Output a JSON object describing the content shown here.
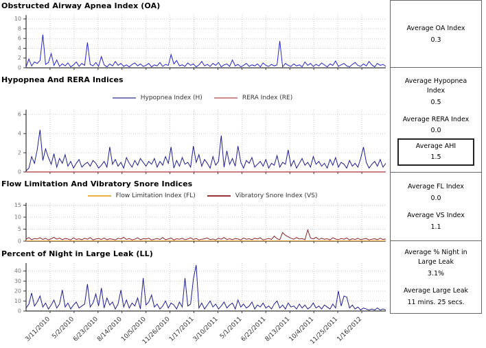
{
  "panel": {
    "oa": {
      "label": "Average OA Index",
      "value": "0.3"
    },
    "hyp": {
      "label": "Average Hypopnea Index",
      "value": "0.5"
    },
    "rera": {
      "label": "Average RERA Index",
      "value": "0.0"
    },
    "ahi": {
      "label": "Average AHI",
      "value": "1.5"
    },
    "fl": {
      "label": "Average FL Index",
      "value": "0.0"
    },
    "vs": {
      "label": "Average VS Index",
      "value": "1.1"
    },
    "ll_pct": {
      "label": "Average % Night in Large Leak",
      "value": "3.1%"
    },
    "ll_time": {
      "label": "Average Large Leak",
      "value": "11 mins. 25 secs."
    }
  },
  "chart_data": [
    {
      "type": "line",
      "title": "Obstructed Airway Apnea Index (OA)",
      "xlabel": "",
      "ylabel": "",
      "ylim": [
        0,
        10.8
      ],
      "yticks": [
        0,
        2,
        4,
        6,
        8,
        10
      ],
      "grid": true,
      "x_range": [
        "3/11/2010",
        "1/16/2012"
      ],
      "sampling_note": "daily values downsampled to ~130 points; notable peaks 6.8 (Mar 2010), 5.2 (Jun 2010), 2.7 (Oct 2010), 5.5 (Aug 2011)",
      "series": [
        {
          "name": "OA Index",
          "color": "#2222cc",
          "values": [
            0.2,
            1.8,
            0.4,
            1.2,
            0.9,
            1.5,
            6.8,
            0.7,
            1.1,
            2.9,
            0.5,
            1.6,
            0.3,
            0.8,
            0.4,
            1.0,
            0.2,
            0.6,
            1.2,
            0.3,
            0.9,
            0.5,
            5.2,
            0.7,
            0.4,
            1.1,
            0.3,
            2.3,
            0.6,
            0.2,
            0.8,
            0.4,
            1.3,
            0.5,
            0.9,
            0.3,
            0.6,
            0.2,
            0.7,
            1.0,
            0.4,
            0.8,
            0.3,
            0.5,
            0.9,
            0.2,
            0.6,
            0.4,
            1.1,
            0.3,
            0.7,
            0.5,
            2.7,
            0.8,
            1.5,
            0.4,
            0.6,
            0.3,
            1.0,
            0.5,
            0.8,
            0.2,
            0.6,
            1.3,
            0.4,
            0.7,
            0.3,
            0.9,
            0.5,
            1.1,
            0.2,
            0.6,
            0.8,
            0.3,
            1.6,
            0.4,
            0.7,
            0.2,
            0.5,
            0.9,
            0.3,
            0.6,
            0.4,
            0.8,
            0.2,
            1.0,
            0.5,
            0.3,
            0.7,
            0.4,
            0.6,
            5.5,
            0.2,
            0.9,
            0.5,
            0.3,
            0.8,
            0.4,
            0.6,
            0.2,
            1.2,
            0.5,
            0.9,
            0.3,
            0.7,
            0.4,
            1.0,
            0.6,
            0.2,
            0.8,
            0.5,
            1.4,
            0.3,
            0.6,
            0.9,
            0.4,
            0.2,
            0.7,
            1.1,
            0.5,
            0.3,
            0.8,
            0.4,
            1.3,
            0.6,
            0.2,
            0.9,
            0.5,
            0.7,
            0.3
          ]
        }
      ]
    },
    {
      "type": "line",
      "title": "Hypopnea And RERA Indices",
      "legend": [
        {
          "label": "Hypopnea Index (H)",
          "color": "#7a7ab8"
        },
        {
          "label": "RERA Index (RE)",
          "color": "#cc8a8a"
        }
      ],
      "ylim": [
        0,
        6.5
      ],
      "yticks": [
        0,
        2,
        4,
        6
      ],
      "grid": true,
      "x_range": [
        "3/11/2010",
        "1/16/2012"
      ],
      "sampling_note": "daily values downsampled to ~130 points; peaks 4.4 (Apr 2010), 3.8 (Jan 2011); RERA flat at 0",
      "series": [
        {
          "name": "Hypopnea Index (H)",
          "color": "#1c1c8f",
          "values": [
            0.1,
            0.4,
            1.6,
            0.9,
            2.3,
            4.4,
            1.2,
            2.4,
            1.5,
            0.8,
            1.9,
            0.5,
            1.4,
            0.9,
            1.8,
            0.6,
            1.1,
            0.4,
            0.9,
            1.3,
            0.5,
            0.8,
            1.0,
            0.6,
            1.2,
            0.9,
            0.4,
            0.7,
            1.1,
            0.5,
            2.6,
            0.8,
            1.3,
            0.6,
            1.0,
            0.4,
            1.5,
            0.9,
            0.5,
            1.2,
            0.7,
            1.4,
            1.0,
            0.6,
            1.1,
            0.8,
            1.4,
            0.5,
            1.1,
            0.7,
            1.6,
            0.9,
            2.6,
            0.4,
            1.2,
            0.6,
            1.5,
            0.8,
            1.0,
            0.5,
            2.7,
            1.0,
            1.8,
            0.6,
            1.3,
            0.9,
            0.4,
            1.6,
            0.7,
            1.1,
            3.8,
            0.5,
            2.2,
            0.8,
            1.4,
            0.6,
            2.7,
            1.0,
            0.4,
            1.2,
            0.9,
            1.5,
            0.5,
            0.8,
            1.1,
            0.6,
            1.3,
            0.4,
            0.9,
            0.7,
            1.7,
            0.5,
            1.0,
            0.8,
            2.3,
            0.6,
            1.2,
            0.4,
            0.9,
            1.4,
            0.7,
            1.0,
            0.5,
            1.6,
            0.8,
            1.1,
            0.6,
            0.9,
            0.4,
            1.3,
            0.7,
            1.5,
            0.5,
            1.0,
            0.8,
            0.4,
            1.2,
            0.6,
            0.9,
            0.5,
            1.4,
            2.6,
            1.0,
            0.4,
            0.8,
            1.1,
            0.6,
            1.3,
            0.5,
            0.9
          ]
        },
        {
          "name": "RERA Index (RE)",
          "color": "#cc3333",
          "values": [
            0,
            0
          ]
        }
      ]
    },
    {
      "type": "line",
      "title": "Flow Limitation And Vibratory Snore Indices",
      "legend": [
        {
          "label": "Flow Limitation Index (FL)",
          "color": "#f0b040"
        },
        {
          "label": "Vibratory Snore Index (VS)",
          "color": "#993333"
        }
      ],
      "ylim": [
        0,
        16
      ],
      "yticks": [
        0,
        5,
        10,
        15
      ],
      "grid": true,
      "x_range": [
        "3/11/2010",
        "1/16/2012"
      ],
      "sampling_note": "daily values downsampled to ~130 points; FL flat near 0; VS mostly ~1 with peaks 3.6 and 4.7 (late 2011)",
      "series": [
        {
          "name": "Flow Limitation Index (FL)",
          "color": "#f0a830",
          "values": [
            0.15,
            0.15
          ]
        },
        {
          "name": "Vibratory Snore Index (VS)",
          "color": "#8f1f1f",
          "values": [
            0.8,
            1.5,
            0.6,
            1.1,
            0.9,
            1.4,
            0.7,
            1.2,
            0.5,
            1.0,
            1.6,
            0.8,
            1.3,
            0.6,
            1.1,
            0.9,
            0.5,
            1.4,
            0.7,
            1.0,
            0.6,
            1.2,
            0.8,
            1.5,
            0.5,
            0.9,
            1.1,
            0.7,
            1.3,
            0.6,
            1.0,
            0.8,
            0.5,
            1.2,
            0.9,
            1.6,
            0.7,
            1.1,
            0.5,
            0.8,
            1.4,
            0.6,
            1.0,
            0.9,
            1.2,
            0.5,
            0.8,
            1.1,
            0.7,
            1.5,
            0.6,
            0.9,
            1.3,
            0.5,
            1.0,
            0.8,
            1.2,
            0.6,
            0.9,
            1.4,
            0.7,
            1.1,
            0.5,
            0.8,
            1.0,
            1.3,
            0.6,
            0.9,
            0.5,
            1.2,
            0.8,
            1.5,
            0.7,
            1.0,
            0.6,
            1.1,
            0.9,
            0.5,
            1.3,
            0.8,
            1.0,
            0.6,
            1.2,
            0.9,
            1.4,
            0.5,
            0.8,
            1.1,
            0.7,
            2.1,
            1.0,
            0.6,
            3.6,
            2.4,
            1.8,
            1.2,
            0.8,
            1.5,
            0.9,
            1.1,
            0.6,
            4.7,
            1.3,
            0.9,
            1.6,
            0.7,
            1.2,
            0.8,
            1.0,
            0.5,
            1.4,
            0.9,
            0.6,
            1.1,
            0.8,
            1.3,
            0.5,
            1.0,
            0.7,
            1.2,
            0.6,
            0.9,
            1.1,
            0.5,
            0.8,
            1.0,
            0.6,
            1.2,
            0.7,
            0.9
          ]
        }
      ]
    },
    {
      "type": "line",
      "title": "Percent of Night in Large Leak (LL)",
      "ylim": [
        0,
        48
      ],
      "yticks": [
        0,
        10,
        20,
        30,
        40
      ],
      "grid": true,
      "xlabels": [
        "3/11/2010",
        "5/2/2010",
        "6/23/2010",
        "8/14/2010",
        "10/5/2010",
        "11/26/2010",
        "1/17/2011",
        "3/10/2011",
        "5/1/2011",
        "6/22/2011",
        "8/13/2011",
        "10/4/2011",
        "11/25/2011",
        "1/16/2012"
      ],
      "sampling_note": "daily values downsampled to ~130 points; peaks 27 (Jun 2010), 33 (Nov 2010), 33/32/46 (Mar-Apr 2011)",
      "series": [
        {
          "name": "% Night in Large Leak",
          "color": "#1c1c8f",
          "values": [
            3,
            7,
            18,
            5,
            9,
            15,
            4,
            8,
            2,
            6,
            11,
            3,
            7,
            21,
            4,
            8,
            2,
            6,
            9,
            3,
            5,
            7,
            27,
            4,
            8,
            17,
            5,
            23,
            3,
            13,
            6,
            9,
            2,
            7,
            21,
            4,
            11,
            3,
            8,
            5,
            13,
            2,
            33,
            6,
            9,
            16,
            4,
            7,
            2,
            5,
            10,
            3,
            8,
            6,
            2,
            9,
            4,
            33,
            5,
            7,
            32,
            46,
            3,
            8,
            2,
            6,
            10,
            4,
            7,
            2,
            5,
            9,
            3,
            6,
            8,
            2,
            11,
            4,
            7,
            3,
            5,
            9,
            2,
            6,
            4,
            8,
            3,
            5,
            2,
            7,
            10,
            3,
            6,
            2,
            8,
            4,
            5,
            2,
            7,
            3,
            6,
            2,
            4,
            8,
            3,
            5,
            2,
            6,
            4,
            2,
            7,
            3,
            20,
            5,
            15,
            14,
            3,
            6,
            2,
            4,
            1,
            3,
            2,
            1,
            2,
            1,
            3,
            1,
            2,
            1
          ]
        }
      ]
    }
  ]
}
